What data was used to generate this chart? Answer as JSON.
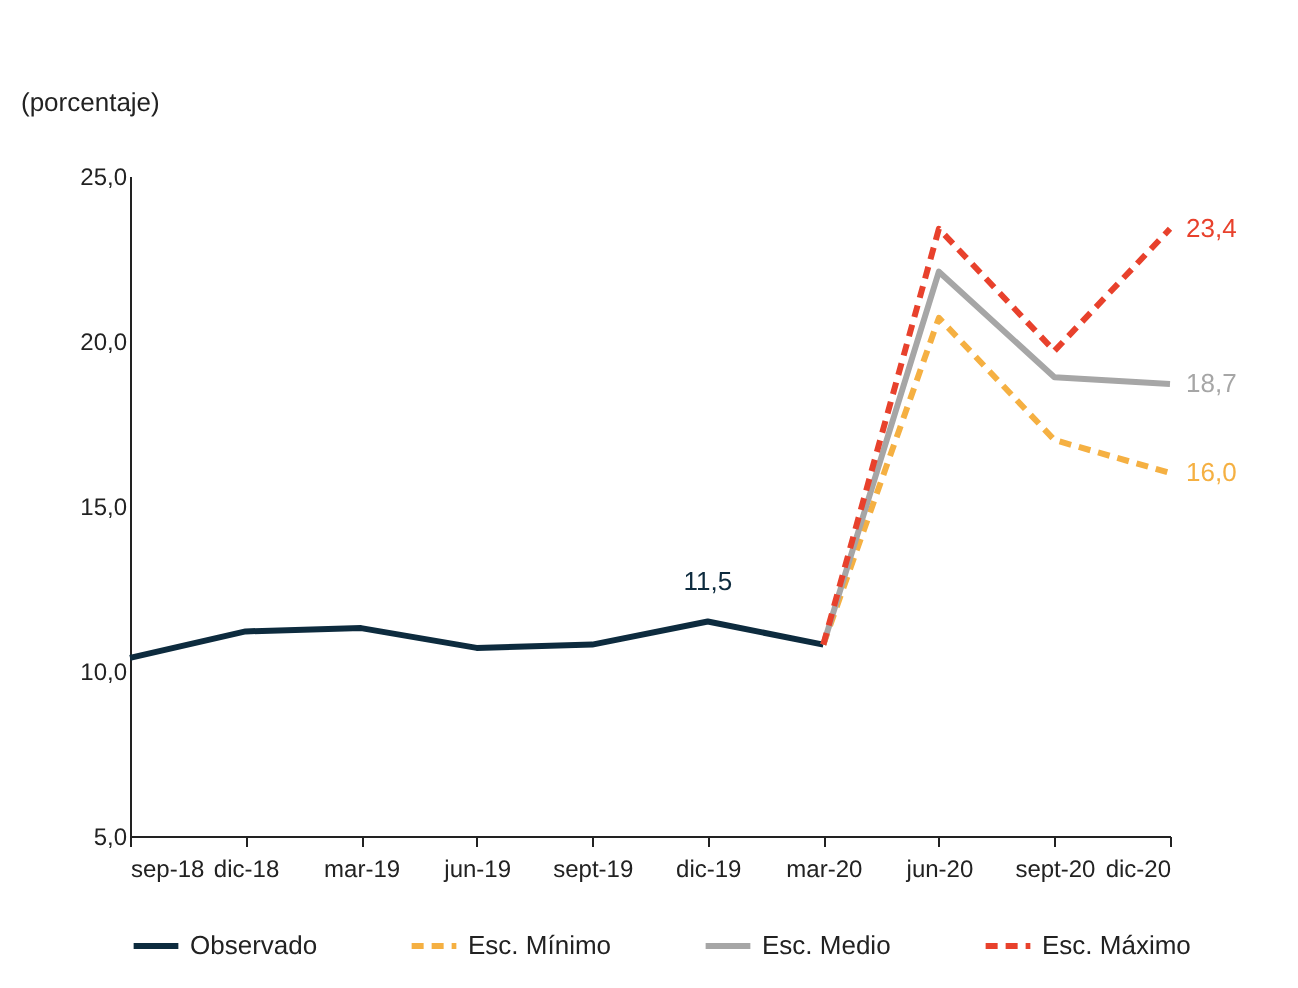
{
  "chart_data": {
    "type": "line",
    "ylabel": "(porcentaje)",
    "categories": [
      "sep-18",
      "dic-18",
      "mar-19",
      "jun-19",
      "sept-19",
      "dic-19",
      "mar-20",
      "jun-20",
      "sept-20",
      "dic-20"
    ],
    "series": [
      {
        "name": "Observado",
        "color": "#0d2b3e",
        "line_style": "solid",
        "values": [
          10.4,
          11.2,
          11.3,
          10.7,
          10.8,
          11.5,
          10.8,
          null,
          null,
          null
        ],
        "value_labels": [
          null,
          null,
          null,
          null,
          null,
          "11,5",
          null,
          null,
          null,
          null
        ]
      },
      {
        "name": "Esc. Mínimo",
        "color": "#f5b042",
        "line_style": "dashed",
        "values": [
          null,
          null,
          null,
          null,
          null,
          null,
          10.8,
          20.7,
          17.0,
          16.0
        ],
        "value_labels": [
          null,
          null,
          null,
          null,
          null,
          null,
          null,
          null,
          null,
          "16,0"
        ]
      },
      {
        "name": "Esc. Medio",
        "color": "#a6a6a6",
        "line_style": "solid",
        "values": [
          null,
          null,
          null,
          null,
          null,
          null,
          10.8,
          22.1,
          18.9,
          18.7
        ],
        "value_labels": [
          null,
          null,
          null,
          null,
          null,
          null,
          null,
          null,
          null,
          "18,7"
        ]
      },
      {
        "name": "Esc. Máximo",
        "color": "#e8412c",
        "line_style": "dashed",
        "values": [
          null,
          null,
          null,
          null,
          null,
          null,
          10.8,
          23.4,
          19.7,
          23.4
        ],
        "value_labels": [
          null,
          null,
          null,
          null,
          null,
          null,
          null,
          null,
          null,
          "23,4"
        ]
      }
    ],
    "ylim": [
      5,
      25
    ],
    "yticks": [
      {
        "value": 5,
        "label": "5,0"
      },
      {
        "value": 10,
        "label": "10,0"
      },
      {
        "value": 15,
        "label": "15,0"
      },
      {
        "value": 20,
        "label": "20,0"
      },
      {
        "value": 25,
        "label": "25,0"
      }
    ],
    "grid": false,
    "legend": "bottom",
    "marker": "none"
  }
}
